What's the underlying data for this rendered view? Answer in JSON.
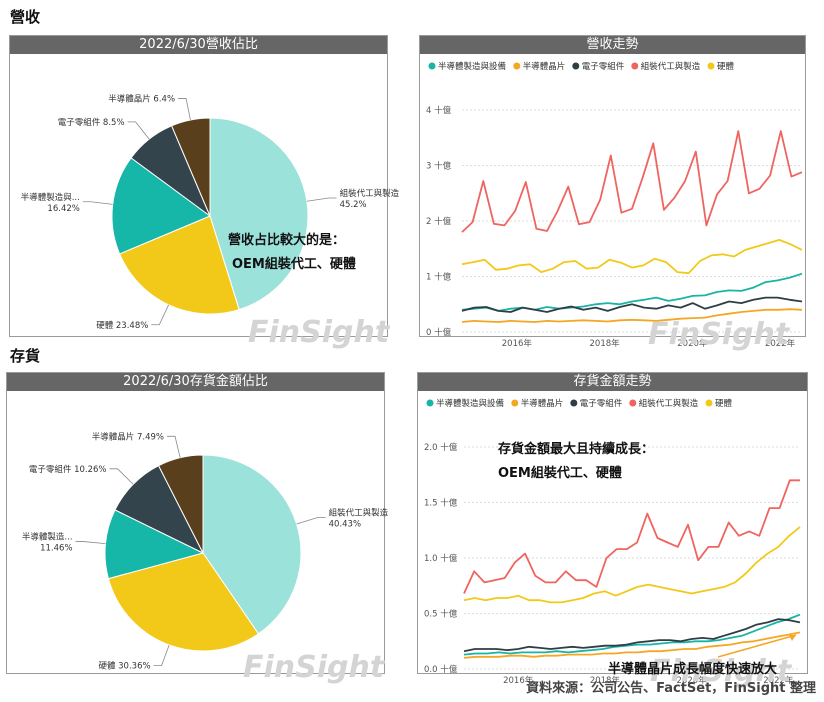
{
  "sections": {
    "revenue": "營收",
    "inventory": "存貨"
  },
  "watermark": "FinSight",
  "source": "資料來源：公司公告、FactSet，FinSight 整理",
  "colors": {
    "semi_equip": "#19b4a4",
    "wafer": "#f5a623",
    "components": "#2f3d44",
    "oem": "#f0645f",
    "hardware": "#f2c918"
  },
  "chart_data": [
    {
      "type": "pie",
      "title": "2022/6/30營收佔比",
      "slices": [
        {
          "name": "組裝代工與製造",
          "label": "組裝代工與製造\n45.2%",
          "value": 45.2,
          "color": "#9be2db"
        },
        {
          "name": "硬體",
          "label": "硬體 23.48%",
          "value": 23.48,
          "color": "#f2c918"
        },
        {
          "name": "半導體製造與...",
          "label": "半導體製造與...\n16.42%",
          "value": 16.42,
          "color": "#16b6a8"
        },
        {
          "name": "電子零組件",
          "label": "電子零組件 8.5%",
          "value": 8.5,
          "color": "#34444c"
        },
        {
          "name": "半導體晶片",
          "label": "半導體晶片 6.4%",
          "value": 6.4,
          "color": "#5a3f1c"
        }
      ],
      "annotation": [
        "營收占比較大的是：",
        "OEM組裝代工、硬體"
      ]
    },
    {
      "type": "line",
      "title": "營收走勢",
      "legend": [
        "半導體製造與設備",
        "半導體晶片",
        "電子零組件",
        "組裝代工與製造",
        "硬體"
      ],
      "yticks": [
        "0 十億",
        "1 十億",
        "2 十億",
        "3 十億",
        "4 十億"
      ],
      "ylim": [
        0,
        4
      ],
      "xticks": [
        "2016年",
        "2018年",
        "2020年",
        "2022年"
      ],
      "x_range": [
        2014.75,
        2022.5
      ],
      "series": [
        {
          "name": "半導體製造與設備",
          "color": "#19b4a4",
          "values": [
            0.4,
            0.42,
            0.44,
            0.38,
            0.42,
            0.44,
            0.4,
            0.45,
            0.42,
            0.44,
            0.46,
            0.5,
            0.52,
            0.5,
            0.55,
            0.58,
            0.62,
            0.56,
            0.6,
            0.65,
            0.66,
            0.72,
            0.75,
            0.74,
            0.8,
            0.9,
            0.93,
            0.98,
            1.05
          ]
        },
        {
          "name": "半導體晶片",
          "color": "#f5a623",
          "values": [
            0.18,
            0.2,
            0.19,
            0.18,
            0.2,
            0.19,
            0.18,
            0.2,
            0.19,
            0.2,
            0.21,
            0.2,
            0.19,
            0.21,
            0.22,
            0.21,
            0.2,
            0.22,
            0.24,
            0.25,
            0.26,
            0.3,
            0.33,
            0.36,
            0.38,
            0.4,
            0.4,
            0.41,
            0.4
          ]
        },
        {
          "name": "電子零組件",
          "color": "#2f3d44",
          "values": [
            0.38,
            0.44,
            0.45,
            0.38,
            0.36,
            0.44,
            0.4,
            0.36,
            0.42,
            0.46,
            0.4,
            0.44,
            0.38,
            0.45,
            0.5,
            0.44,
            0.42,
            0.48,
            0.44,
            0.52,
            0.42,
            0.48,
            0.55,
            0.52,
            0.58,
            0.62,
            0.62,
            0.58,
            0.55
          ]
        },
        {
          "name": "組裝代工與製造",
          "color": "#f0645f",
          "values": [
            1.8,
            1.98,
            2.72,
            1.95,
            1.92,
            2.18,
            2.7,
            1.86,
            1.82,
            2.18,
            2.62,
            1.94,
            1.98,
            2.38,
            3.18,
            2.15,
            2.22,
            2.78,
            3.4,
            2.2,
            2.42,
            2.72,
            3.25,
            1.92,
            2.48,
            2.72,
            3.62,
            2.5,
            2.58,
            2.82,
            3.62,
            2.8,
            2.88
          ]
        },
        {
          "name": "硬體",
          "color": "#f2c918",
          "values": [
            1.22,
            1.26,
            1.3,
            1.12,
            1.14,
            1.2,
            1.22,
            1.08,
            1.14,
            1.26,
            1.28,
            1.14,
            1.16,
            1.3,
            1.25,
            1.16,
            1.2,
            1.32,
            1.26,
            1.08,
            1.06,
            1.28,
            1.38,
            1.4,
            1.36,
            1.48,
            1.54,
            1.6,
            1.66,
            1.58,
            1.48
          ]
        }
      ]
    },
    {
      "type": "pie",
      "title": "2022/6/30存貨金額佔比",
      "slices": [
        {
          "name": "組裝代工與製造",
          "label": "組裝代工與製造\n40.43%",
          "value": 40.43,
          "color": "#9be2db"
        },
        {
          "name": "硬體",
          "label": "硬體 30.36%",
          "value": 30.36,
          "color": "#f2c918"
        },
        {
          "name": "半導體製造...",
          "label": "半導體製造...\n11.46%",
          "value": 11.46,
          "color": "#16b6a8"
        },
        {
          "name": "電子零組件",
          "label": "電子零組件 10.26%",
          "value": 10.26,
          "color": "#34444c"
        },
        {
          "name": "半導體晶片",
          "label": "半導體晶片 7.49%",
          "value": 7.49,
          "color": "#5a3f1c"
        }
      ]
    },
    {
      "type": "line",
      "title": "存貨金額走勢",
      "legend": [
        "半導體製造與設備",
        "半導體晶片",
        "電子零組件",
        "組裝代工與製造",
        "硬體"
      ],
      "yticks": [
        "0.0 十億",
        "0.5 十億",
        "1.0 十億",
        "1.5 十億",
        "2.0 十億"
      ],
      "ylim": [
        0,
        2
      ],
      "xticks": [
        "2016年",
        "2018年",
        "2020年",
        "2022年"
      ],
      "x_range": [
        2014.75,
        2022.5
      ],
      "series": [
        {
          "name": "半導體製造與設備",
          "color": "#19b4a4",
          "values": [
            0.13,
            0.14,
            0.14,
            0.15,
            0.14,
            0.15,
            0.15,
            0.15,
            0.16,
            0.15,
            0.16,
            0.17,
            0.18,
            0.2,
            0.21,
            0.22,
            0.22,
            0.23,
            0.24,
            0.24,
            0.25,
            0.25,
            0.26,
            0.28,
            0.3,
            0.34,
            0.38,
            0.42,
            0.45,
            0.49
          ]
        },
        {
          "name": "半導體晶片",
          "color": "#f5a623",
          "values": [
            0.1,
            0.11,
            0.11,
            0.11,
            0.12,
            0.12,
            0.11,
            0.12,
            0.12,
            0.13,
            0.13,
            0.13,
            0.14,
            0.14,
            0.15,
            0.15,
            0.16,
            0.16,
            0.17,
            0.18,
            0.18,
            0.2,
            0.21,
            0.22,
            0.24,
            0.25,
            0.27,
            0.29,
            0.31,
            0.33
          ]
        },
        {
          "name": "電子零組件",
          "color": "#2f3d44",
          "values": [
            0.16,
            0.18,
            0.18,
            0.18,
            0.17,
            0.18,
            0.2,
            0.19,
            0.18,
            0.19,
            0.2,
            0.19,
            0.2,
            0.21,
            0.21,
            0.22,
            0.24,
            0.25,
            0.26,
            0.26,
            0.25,
            0.27,
            0.28,
            0.27,
            0.3,
            0.33,
            0.36,
            0.4,
            0.42,
            0.45,
            0.44,
            0.42
          ]
        },
        {
          "name": "組裝代工與製造",
          "color": "#f0645f",
          "values": [
            0.68,
            0.88,
            0.78,
            0.8,
            0.82,
            0.96,
            1.04,
            0.84,
            0.78,
            0.78,
            0.88,
            0.8,
            0.8,
            0.74,
            1.0,
            1.08,
            1.08,
            1.14,
            1.4,
            1.18,
            1.14,
            1.1,
            1.3,
            0.98,
            1.1,
            1.1,
            1.32,
            1.2,
            1.24,
            1.2,
            1.45,
            1.45,
            1.7,
            1.7
          ]
        },
        {
          "name": "硬體",
          "color": "#f2c918",
          "values": [
            0.62,
            0.64,
            0.62,
            0.64,
            0.64,
            0.66,
            0.62,
            0.62,
            0.6,
            0.6,
            0.62,
            0.64,
            0.68,
            0.7,
            0.66,
            0.7,
            0.74,
            0.76,
            0.74,
            0.72,
            0.7,
            0.68,
            0.7,
            0.72,
            0.74,
            0.78,
            0.86,
            0.96,
            1.04,
            1.1,
            1.2,
            1.28
          ]
        }
      ],
      "annotations": [
        "存貨金額最大且持續成長：",
        "OEM組裝代工、硬體",
        "半導體晶片成長幅度快速放大"
      ]
    }
  ]
}
